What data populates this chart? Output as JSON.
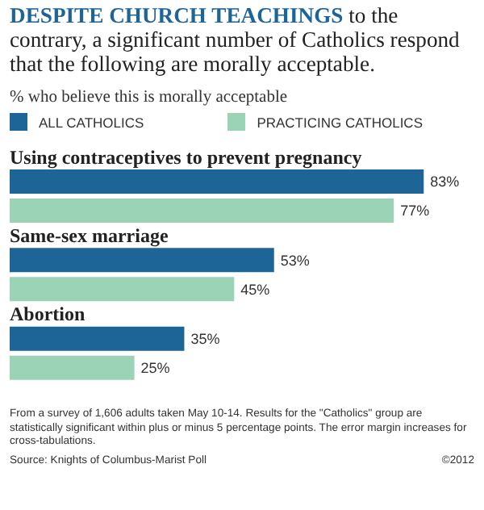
{
  "chart_data": {
    "type": "bar",
    "orientation": "horizontal",
    "title": "DESPITE CHURCH TEACHINGS",
    "subtitle": "to the contrary, a significant number of Catholics respond that the following are morally acceptable.",
    "xlabel": "% who believe this is morally acceptable",
    "categories": [
      "Using contraceptives to prevent pregnancy",
      "Same-sex marriage",
      "Abortion"
    ],
    "series": [
      {
        "name": "ALL CATHOLICS",
        "color": "#1d6497",
        "values": [
          83,
          53,
          35
        ],
        "value_labels": [
          "83%",
          "53%",
          "35%"
        ]
      },
      {
        "name": "PRACTICING CATHOLICS",
        "color": "#9bd3b6",
        "values": [
          77,
          45,
          25
        ],
        "value_labels": [
          "77%",
          "45%",
          "25%"
        ]
      }
    ],
    "legend": "top left",
    "grid": false,
    "annotations": [
      "From a survey of 1,606 adults taken May 10-14. Results for the \"Catholics\" group are statistically significant within plus or minus 5 percentage points. The error margin increases for cross-tabulations.",
      "Source: Knights of Columbus-Marist Poll",
      "©2012"
    ]
  }
}
